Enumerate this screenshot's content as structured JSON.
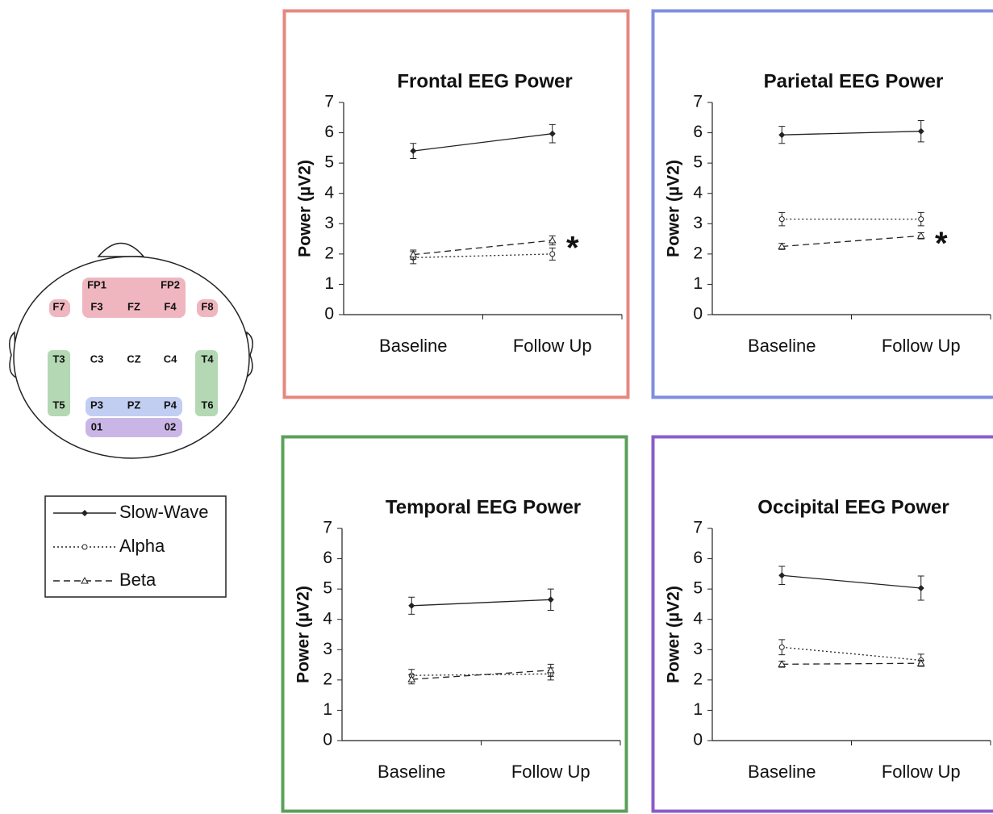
{
  "chart_data": [
    {
      "type": "line",
      "title": "Frontal EEG Power",
      "y_label": "Power (µV2)",
      "frame_color": "#e8877f",
      "categories": [
        "Baseline",
        "Follow Up"
      ],
      "ylim": [
        0,
        7
      ],
      "yticks": [
        0,
        1,
        2,
        3,
        4,
        5,
        6,
        7
      ],
      "annotation": "*",
      "series": [
        {
          "name": "Slow-Wave",
          "color": "#222",
          "dash": "solid",
          "marker": "diamond",
          "values": [
            5.4,
            5.97
          ],
          "errors": [
            0.25,
            0.3
          ]
        },
        {
          "name": "Alpha",
          "color": "#222",
          "dash": "dotted",
          "marker": "circle",
          "values": [
            1.88,
            2.0
          ],
          "errors": [
            0.2,
            0.2
          ]
        },
        {
          "name": "Beta",
          "color": "#222",
          "dash": "dashed",
          "marker": "triangle",
          "values": [
            1.98,
            2.45
          ],
          "errors": [
            0.15,
            0.15
          ]
        }
      ]
    },
    {
      "type": "line",
      "title": "Parietal EEG Power",
      "y_label": "Power (µV2)",
      "frame_color": "#7f8ee0",
      "categories": [
        "Baseline",
        "Follow Up"
      ],
      "ylim": [
        0,
        7
      ],
      "yticks": [
        0,
        1,
        2,
        3,
        4,
        5,
        6,
        7
      ],
      "annotation": "*",
      "series": [
        {
          "name": "Slow-Wave",
          "color": "#222",
          "dash": "solid",
          "marker": "diamond",
          "values": [
            5.93,
            6.05
          ],
          "errors": [
            0.28,
            0.35
          ]
        },
        {
          "name": "Alpha",
          "color": "#222",
          "dash": "dotted",
          "marker": "circle",
          "values": [
            3.15,
            3.15
          ],
          "errors": [
            0.22,
            0.22
          ]
        },
        {
          "name": "Beta",
          "color": "#222",
          "dash": "dashed",
          "marker": "triangle",
          "values": [
            2.25,
            2.6
          ],
          "errors": [
            0.1,
            0.1
          ]
        }
      ]
    },
    {
      "type": "line",
      "title": "Temporal EEG Power",
      "y_label": "Power (µV2)",
      "frame_color": "#5aa05a",
      "categories": [
        "Baseline",
        "Follow Up"
      ],
      "ylim": [
        0,
        7
      ],
      "yticks": [
        0,
        1,
        2,
        3,
        4,
        5,
        6,
        7
      ],
      "series": [
        {
          "name": "Slow-Wave",
          "color": "#222",
          "dash": "solid",
          "marker": "diamond",
          "values": [
            4.45,
            4.65
          ],
          "errors": [
            0.28,
            0.35
          ]
        },
        {
          "name": "Alpha",
          "color": "#222",
          "dash": "dotted",
          "marker": "circle",
          "values": [
            2.15,
            2.2
          ],
          "errors": [
            0.2,
            0.2
          ]
        },
        {
          "name": "Beta",
          "color": "#222",
          "dash": "dashed",
          "marker": "triangle",
          "values": [
            2.02,
            2.32
          ],
          "errors": [
            0.15,
            0.2
          ]
        }
      ]
    },
    {
      "type": "line",
      "title": "Occipital EEG Power",
      "y_label": "Power (µV2)",
      "frame_color": "#8a5cc8",
      "categories": [
        "Baseline",
        "Follow Up"
      ],
      "ylim": [
        0,
        7
      ],
      "yticks": [
        0,
        1,
        2,
        3,
        4,
        5,
        6,
        7
      ],
      "series": [
        {
          "name": "Slow-Wave",
          "color": "#222",
          "dash": "solid",
          "marker": "diamond",
          "values": [
            5.45,
            5.03
          ],
          "errors": [
            0.3,
            0.4
          ]
        },
        {
          "name": "Alpha",
          "color": "#222",
          "dash": "dotted",
          "marker": "circle",
          "values": [
            3.08,
            2.65
          ],
          "errors": [
            0.25,
            0.2
          ]
        },
        {
          "name": "Beta",
          "color": "#222",
          "dash": "dashed",
          "marker": "triangle",
          "values": [
            2.52,
            2.55
          ],
          "errors": [
            0.1,
            0.1
          ]
        }
      ]
    }
  ],
  "head_map": {
    "electrodes": [
      "FP1",
      "FP2",
      "F7",
      "F3",
      "FZ",
      "F4",
      "F8",
      "T3",
      "C3",
      "CZ",
      "C4",
      "T4",
      "T5",
      "P3",
      "PZ",
      "P4",
      "T6",
      "01",
      "02"
    ]
  }
}
